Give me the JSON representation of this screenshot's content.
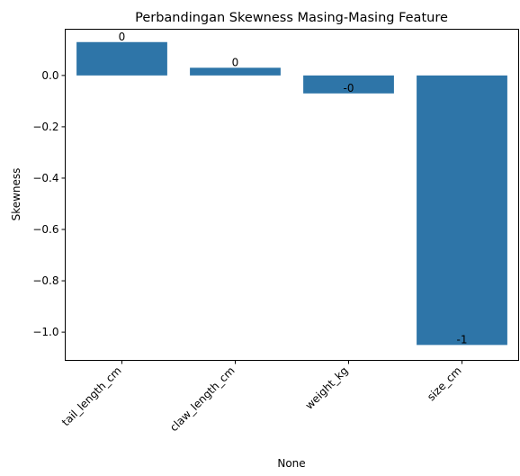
{
  "chart_data": {
    "type": "bar",
    "title": "Perbandingan Skewness Masing-Masing Feature",
    "xlabel": "None",
    "ylabel": "Skewness",
    "categories": [
      "tail_length_cm",
      "claw_length_cm",
      "weight_kg",
      "size_cm"
    ],
    "values": [
      0.13,
      0.03,
      -0.07,
      -1.05
    ],
    "data_labels": [
      "0",
      "0",
      "-0",
      "-1"
    ],
    "yticks": [
      0.0,
      -0.2,
      -0.4,
      -0.6,
      -0.8,
      -1.0
    ],
    "ytick_labels": [
      "0.0",
      "−0.2",
      "−0.4",
      "−0.6",
      "−0.8",
      "−1.0"
    ],
    "ylim": [
      -1.11,
      0.18
    ],
    "grid": false,
    "bar_color": "#2e75a8"
  }
}
